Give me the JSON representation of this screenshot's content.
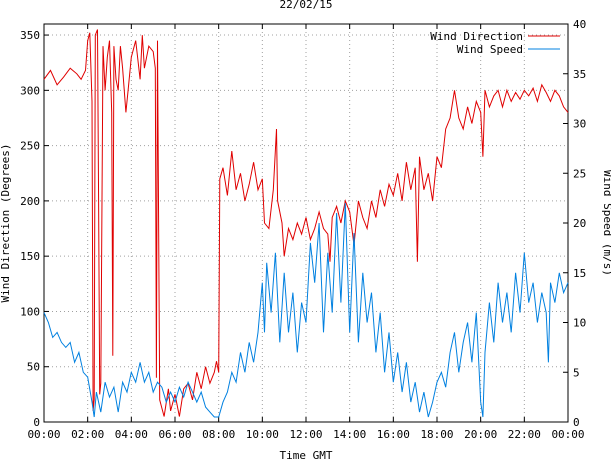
{
  "chart_data": {
    "type": "line",
    "title": "22/02/15",
    "xlabel": "Time GMT",
    "ylabel_left": "Wind Direction (Degrees)",
    "ylabel_right": "Wind Speed (m/s)",
    "xlim": [
      0,
      24
    ],
    "ylim_left": [
      0,
      360
    ],
    "ylim_right": [
      0,
      40
    ],
    "x_ticks": [
      "00:00",
      "02:00",
      "04:00",
      "06:00",
      "08:00",
      "10:00",
      "12:00",
      "14:00",
      "16:00",
      "18:00",
      "20:00",
      "22:00",
      "00:00"
    ],
    "y_ticks_left": [
      0,
      50,
      100,
      150,
      200,
      250,
      300,
      350
    ],
    "y_ticks_right": [
      0,
      5,
      10,
      15,
      20,
      25,
      30,
      35,
      40
    ],
    "grid": true,
    "legend_position": "top-right",
    "series": [
      {
        "name": "Wind Direction",
        "axis": "left",
        "color": "#e00000",
        "points": [
          [
            0.0,
            310
          ],
          [
            0.3,
            318
          ],
          [
            0.6,
            305
          ],
          [
            0.9,
            312
          ],
          [
            1.2,
            320
          ],
          [
            1.5,
            315
          ],
          [
            1.7,
            310
          ],
          [
            1.9,
            318
          ],
          [
            2.0,
            345
          ],
          [
            2.1,
            352
          ],
          [
            2.2,
            290
          ],
          [
            2.25,
            10
          ],
          [
            2.3,
            20
          ],
          [
            2.35,
            350
          ],
          [
            2.45,
            355
          ],
          [
            2.5,
            200
          ],
          [
            2.55,
            25
          ],
          [
            2.6,
            35
          ],
          [
            2.7,
            340
          ],
          [
            2.8,
            300
          ],
          [
            2.9,
            330
          ],
          [
            3.0,
            345
          ],
          [
            3.1,
            280
          ],
          [
            3.15,
            60
          ],
          [
            3.2,
            340
          ],
          [
            3.3,
            310
          ],
          [
            3.4,
            300
          ],
          [
            3.5,
            340
          ],
          [
            3.6,
            320
          ],
          [
            3.75,
            280
          ],
          [
            3.85,
            300
          ],
          [
            4.0,
            330
          ],
          [
            4.2,
            345
          ],
          [
            4.4,
            310
          ],
          [
            4.5,
            350
          ],
          [
            4.6,
            320
          ],
          [
            4.8,
            340
          ],
          [
            5.0,
            335
          ],
          [
            5.1,
            320
          ],
          [
            5.15,
            40
          ],
          [
            5.2,
            345
          ],
          [
            5.3,
            20
          ],
          [
            5.5,
            5
          ],
          [
            5.7,
            30
          ],
          [
            5.8,
            10
          ],
          [
            6.0,
            25
          ],
          [
            6.2,
            5
          ],
          [
            6.4,
            30
          ],
          [
            6.6,
            35
          ],
          [
            6.8,
            20
          ],
          [
            7.0,
            45
          ],
          [
            7.2,
            30
          ],
          [
            7.4,
            50
          ],
          [
            7.6,
            35
          ],
          [
            7.8,
            45
          ],
          [
            7.9,
            55
          ],
          [
            8.0,
            45
          ],
          [
            8.05,
            220
          ],
          [
            8.2,
            230
          ],
          [
            8.4,
            205
          ],
          [
            8.6,
            245
          ],
          [
            8.8,
            210
          ],
          [
            9.0,
            225
          ],
          [
            9.2,
            200
          ],
          [
            9.4,
            215
          ],
          [
            9.6,
            235
          ],
          [
            9.8,
            210
          ],
          [
            10.0,
            220
          ],
          [
            10.1,
            180
          ],
          [
            10.3,
            175
          ],
          [
            10.5,
            210
          ],
          [
            10.65,
            265
          ],
          [
            10.7,
            200
          ],
          [
            10.9,
            180
          ],
          [
            11.0,
            150
          ],
          [
            11.2,
            175
          ],
          [
            11.4,
            165
          ],
          [
            11.6,
            180
          ],
          [
            11.8,
            170
          ],
          [
            12.0,
            185
          ],
          [
            12.2,
            165
          ],
          [
            12.4,
            175
          ],
          [
            12.6,
            190
          ],
          [
            12.8,
            175
          ],
          [
            13.0,
            170
          ],
          [
            13.1,
            145
          ],
          [
            13.2,
            185
          ],
          [
            13.4,
            195
          ],
          [
            13.6,
            180
          ],
          [
            13.8,
            200
          ],
          [
            14.0,
            190
          ],
          [
            14.2,
            160
          ],
          [
            14.4,
            200
          ],
          [
            14.6,
            185
          ],
          [
            14.8,
            175
          ],
          [
            15.0,
            200
          ],
          [
            15.2,
            185
          ],
          [
            15.4,
            210
          ],
          [
            15.6,
            195
          ],
          [
            15.8,
            215
          ],
          [
            16.0,
            205
          ],
          [
            16.2,
            225
          ],
          [
            16.4,
            200
          ],
          [
            16.6,
            235
          ],
          [
            16.8,
            210
          ],
          [
            17.0,
            230
          ],
          [
            17.1,
            145
          ],
          [
            17.2,
            240
          ],
          [
            17.4,
            210
          ],
          [
            17.6,
            225
          ],
          [
            17.8,
            200
          ],
          [
            18.0,
            240
          ],
          [
            18.2,
            230
          ],
          [
            18.4,
            265
          ],
          [
            18.6,
            275
          ],
          [
            18.8,
            300
          ],
          [
            19.0,
            275
          ],
          [
            19.2,
            265
          ],
          [
            19.4,
            285
          ],
          [
            19.6,
            270
          ],
          [
            19.8,
            290
          ],
          [
            20.0,
            280
          ],
          [
            20.1,
            240
          ],
          [
            20.2,
            300
          ],
          [
            20.4,
            285
          ],
          [
            20.6,
            295
          ],
          [
            20.8,
            300
          ],
          [
            21.0,
            285
          ],
          [
            21.2,
            300
          ],
          [
            21.4,
            290
          ],
          [
            21.6,
            298
          ],
          [
            21.8,
            292
          ],
          [
            22.0,
            300
          ],
          [
            22.2,
            295
          ],
          [
            22.4,
            302
          ],
          [
            22.6,
            290
          ],
          [
            22.8,
            305
          ],
          [
            23.0,
            298
          ],
          [
            23.2,
            290
          ],
          [
            23.4,
            300
          ],
          [
            23.6,
            295
          ],
          [
            23.8,
            285
          ],
          [
            24.0,
            280
          ]
        ]
      },
      {
        "name": "Wind Speed",
        "axis": "right",
        "color": "#0080e0",
        "points": [
          [
            0.0,
            11
          ],
          [
            0.2,
            10
          ],
          [
            0.4,
            8.5
          ],
          [
            0.6,
            9
          ],
          [
            0.8,
            8
          ],
          [
            1.0,
            7.5
          ],
          [
            1.2,
            8
          ],
          [
            1.4,
            6
          ],
          [
            1.6,
            7
          ],
          [
            1.8,
            5
          ],
          [
            2.0,
            4.5
          ],
          [
            2.2,
            2
          ],
          [
            2.3,
            0.5
          ],
          [
            2.4,
            3
          ],
          [
            2.6,
            1
          ],
          [
            2.8,
            4
          ],
          [
            3.0,
            2.5
          ],
          [
            3.2,
            3.5
          ],
          [
            3.4,
            1
          ],
          [
            3.6,
            4
          ],
          [
            3.8,
            3
          ],
          [
            4.0,
            5
          ],
          [
            4.2,
            4
          ],
          [
            4.4,
            6
          ],
          [
            4.6,
            4
          ],
          [
            4.8,
            5
          ],
          [
            5.0,
            3
          ],
          [
            5.2,
            4
          ],
          [
            5.4,
            3.5
          ],
          [
            5.6,
            2
          ],
          [
            5.8,
            3
          ],
          [
            6.0,
            2
          ],
          [
            6.2,
            3.5
          ],
          [
            6.4,
            2.5
          ],
          [
            6.6,
            4
          ],
          [
            6.8,
            3
          ],
          [
            7.0,
            2
          ],
          [
            7.2,
            3
          ],
          [
            7.4,
            1.5
          ],
          [
            7.6,
            1
          ],
          [
            7.8,
            0.5
          ],
          [
            8.0,
            0.5
          ],
          [
            8.2,
            2
          ],
          [
            8.4,
            3
          ],
          [
            8.6,
            5
          ],
          [
            8.8,
            4
          ],
          [
            9.0,
            7
          ],
          [
            9.2,
            5
          ],
          [
            9.4,
            8
          ],
          [
            9.6,
            6
          ],
          [
            9.8,
            9
          ],
          [
            10.0,
            14
          ],
          [
            10.1,
            9
          ],
          [
            10.2,
            16
          ],
          [
            10.4,
            11
          ],
          [
            10.6,
            17
          ],
          [
            10.8,
            8
          ],
          [
            11.0,
            15
          ],
          [
            11.2,
            9
          ],
          [
            11.4,
            13
          ],
          [
            11.6,
            7
          ],
          [
            11.8,
            12
          ],
          [
            12.0,
            10
          ],
          [
            12.2,
            18
          ],
          [
            12.4,
            14
          ],
          [
            12.6,
            20
          ],
          [
            12.8,
            9
          ],
          [
            13.0,
            17
          ],
          [
            13.2,
            11
          ],
          [
            13.4,
            21
          ],
          [
            13.6,
            12
          ],
          [
            13.8,
            22
          ],
          [
            14.0,
            9
          ],
          [
            14.2,
            19
          ],
          [
            14.4,
            8
          ],
          [
            14.6,
            15
          ],
          [
            14.8,
            10
          ],
          [
            15.0,
            13
          ],
          [
            15.2,
            7
          ],
          [
            15.4,
            11
          ],
          [
            15.6,
            5
          ],
          [
            15.8,
            9
          ],
          [
            16.0,
            4
          ],
          [
            16.2,
            7
          ],
          [
            16.4,
            3
          ],
          [
            16.6,
            6
          ],
          [
            16.8,
            2
          ],
          [
            17.0,
            4
          ],
          [
            17.2,
            1
          ],
          [
            17.4,
            3
          ],
          [
            17.6,
            0.5
          ],
          [
            17.8,
            2
          ],
          [
            18.0,
            4
          ],
          [
            18.2,
            5
          ],
          [
            18.4,
            3.5
          ],
          [
            18.6,
            7
          ],
          [
            18.8,
            9
          ],
          [
            19.0,
            5
          ],
          [
            19.2,
            8
          ],
          [
            19.4,
            10
          ],
          [
            19.6,
            6
          ],
          [
            19.8,
            11
          ],
          [
            20.0,
            2
          ],
          [
            20.1,
            0.5
          ],
          [
            20.2,
            7
          ],
          [
            20.4,
            12
          ],
          [
            20.6,
            8
          ],
          [
            20.8,
            14
          ],
          [
            21.0,
            10
          ],
          [
            21.2,
            13
          ],
          [
            21.4,
            9
          ],
          [
            21.6,
            15
          ],
          [
            21.8,
            11
          ],
          [
            22.0,
            17
          ],
          [
            22.2,
            12
          ],
          [
            22.4,
            14
          ],
          [
            22.6,
            10
          ],
          [
            22.8,
            13
          ],
          [
            23.0,
            11
          ],
          [
            23.1,
            6
          ],
          [
            23.2,
            14
          ],
          [
            23.4,
            12
          ],
          [
            23.6,
            15
          ],
          [
            23.8,
            13
          ],
          [
            24.0,
            14
          ]
        ]
      }
    ]
  }
}
